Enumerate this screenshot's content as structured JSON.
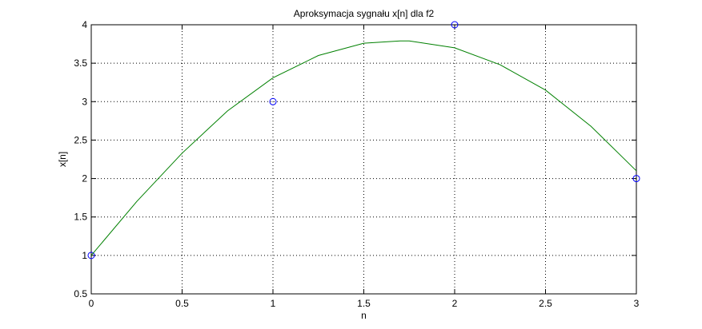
{
  "chart_data": {
    "type": "line",
    "title": "Aproksymacja sygnału x[n] dla f2",
    "xlabel": "n",
    "ylabel": "x[n]",
    "xlim": [
      0,
      3
    ],
    "ylim": [
      0.5,
      4
    ],
    "xticks": [
      0,
      0.5,
      1,
      1.5,
      2,
      2.5,
      3
    ],
    "xtick_labels": [
      "0",
      "0.5",
      "1",
      "1.5",
      "2",
      "2.5",
      "3"
    ],
    "yticks": [
      0.5,
      1,
      1.5,
      2,
      2.5,
      3,
      3.5,
      4
    ],
    "ytick_labels": [
      "0.5",
      "1",
      "1.5",
      "2",
      "2.5",
      "3",
      "3.5",
      "4"
    ],
    "grid": true,
    "grid_style": "dotted",
    "legend": "none",
    "series": [
      {
        "style": "markers-circle",
        "color": "#0000ff",
        "x": [
          0,
          1,
          2,
          3
        ],
        "y": [
          1,
          3,
          4,
          2
        ]
      },
      {
        "style": "line",
        "color": "#008000",
        "x": [
          0,
          0.25,
          0.5,
          0.75,
          1,
          1.25,
          1.5,
          1.7,
          1.75,
          2,
          2.25,
          2.5,
          2.75,
          3
        ],
        "y": [
          1.0,
          1.7,
          2.33,
          2.88,
          3.31,
          3.6,
          3.76,
          3.79,
          3.79,
          3.7,
          3.48,
          3.15,
          2.68,
          2.1
        ]
      }
    ]
  }
}
